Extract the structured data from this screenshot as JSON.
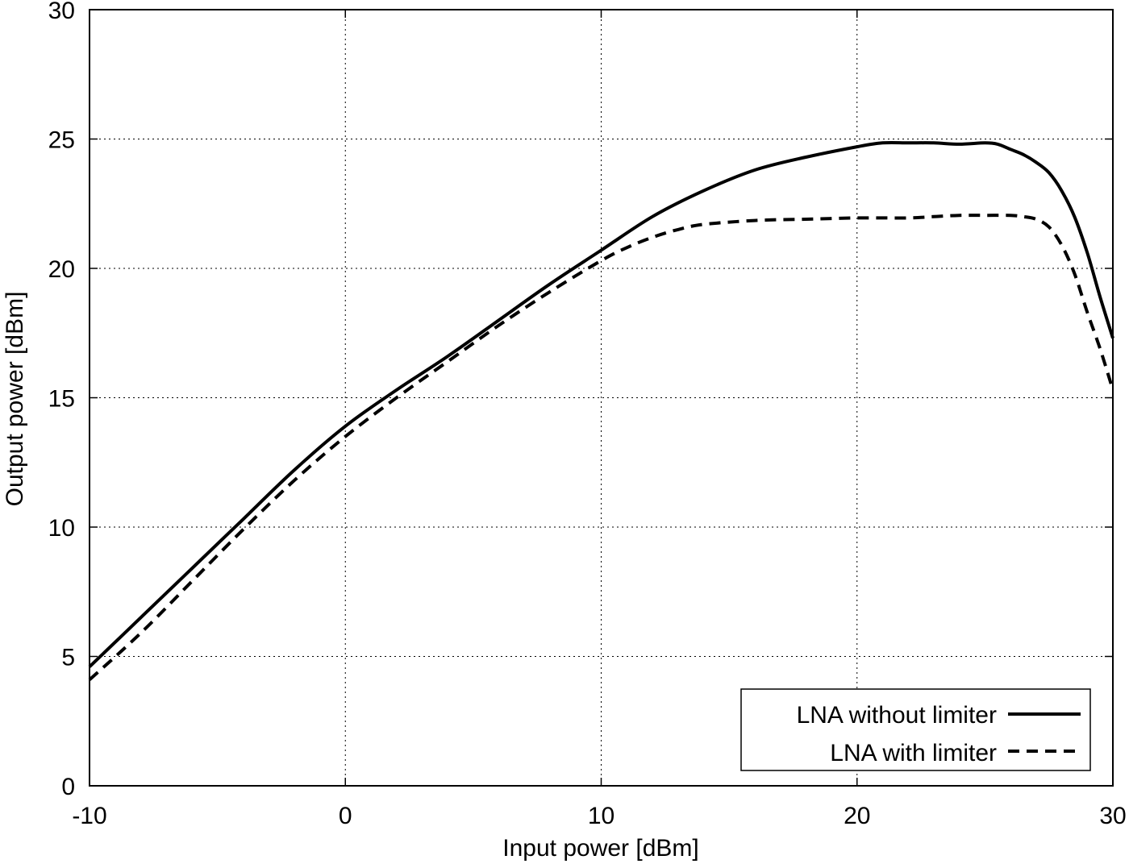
{
  "chart_data": {
    "type": "line",
    "title": "",
    "xlabel": "Input power [dBm]",
    "ylabel": "Output power [dBm]",
    "xlim": [
      -10,
      30
    ],
    "ylim": [
      0,
      30
    ],
    "xticks": [
      -10,
      0,
      10,
      20,
      30
    ],
    "yticks": [
      0,
      5,
      10,
      15,
      20,
      25,
      30
    ],
    "grid": true,
    "legend_position": "bottom-right",
    "series": [
      {
        "name": "LNA without limiter",
        "style": "solid",
        "color": "#000000",
        "x": [
          -10,
          -8,
          -6,
          -4,
          -2,
          0,
          2,
          4,
          6,
          8,
          10,
          12,
          14,
          16,
          18,
          20,
          21,
          22,
          23,
          24,
          25,
          25.5,
          26,
          26.5,
          27,
          27.5,
          28,
          28.5,
          29,
          29.5,
          30
        ],
        "y": [
          4.6,
          6.5,
          8.4,
          10.3,
          12.2,
          13.9,
          15.3,
          16.6,
          18.0,
          19.4,
          20.7,
          22.0,
          23.0,
          23.8,
          24.3,
          24.7,
          24.85,
          24.85,
          24.85,
          24.8,
          24.85,
          24.8,
          24.6,
          24.4,
          24.1,
          23.7,
          23.0,
          22.0,
          20.6,
          18.9,
          17.3
        ]
      },
      {
        "name": "LNA with limiter",
        "style": "dashed",
        "color": "#000000",
        "x": [
          -10,
          -8,
          -6,
          -4,
          -2,
          0,
          2,
          4,
          6,
          8,
          10,
          11,
          12,
          13,
          14,
          16,
          18,
          20,
          22,
          23,
          24,
          25,
          26,
          26.5,
          27,
          27.5,
          28,
          28.5,
          29,
          29.5,
          30
        ],
        "y": [
          4.1,
          5.9,
          7.9,
          9.9,
          11.8,
          13.5,
          15.0,
          16.4,
          17.8,
          19.1,
          20.3,
          20.8,
          21.2,
          21.5,
          21.7,
          21.85,
          21.9,
          21.95,
          21.95,
          22.0,
          22.05,
          22.05,
          22.05,
          22.0,
          21.9,
          21.6,
          20.9,
          19.8,
          18.3,
          16.9,
          15.3
        ]
      }
    ]
  }
}
